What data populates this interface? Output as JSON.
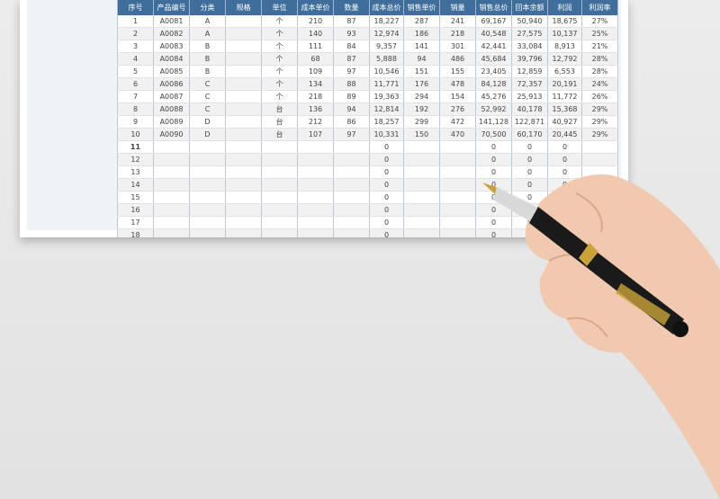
{
  "columns": [
    "序号",
    "产品编号",
    "分类",
    "规格",
    "单位",
    "成本单价",
    "数量",
    "成本总价",
    "销售单价",
    "销量",
    "销售总价",
    "回本余额",
    "利润",
    "利润率"
  ],
  "rows": [
    [
      "1",
      "A0081",
      "A",
      "",
      "个",
      "210",
      "87",
      "18,227",
      "287",
      "241",
      "69,167",
      "50,940",
      "18,675",
      "27%"
    ],
    [
      "2",
      "A0082",
      "A",
      "",
      "个",
      "140",
      "93",
      "12,974",
      "186",
      "218",
      "40,548",
      "27,575",
      "10,137",
      "25%"
    ],
    [
      "3",
      "A0083",
      "B",
      "",
      "个",
      "111",
      "84",
      "9,357",
      "141",
      "301",
      "42,441",
      "33,084",
      "8,913",
      "21%"
    ],
    [
      "4",
      "A0084",
      "B",
      "",
      "个",
      "68",
      "87",
      "5,888",
      "94",
      "486",
      "45,684",
      "39,796",
      "12,792",
      "28%"
    ],
    [
      "5",
      "A0085",
      "B",
      "",
      "个",
      "109",
      "97",
      "10,546",
      "151",
      "155",
      "23,405",
      "12,859",
      "6,553",
      "28%"
    ],
    [
      "6",
      "A0086",
      "C",
      "",
      "个",
      "134",
      "88",
      "11,771",
      "176",
      "478",
      "84,128",
      "72,357",
      "20,191",
      "24%"
    ],
    [
      "7",
      "A0087",
      "C",
      "",
      "个",
      "218",
      "89",
      "19,363",
      "294",
      "154",
      "45,276",
      "25,913",
      "11,772",
      "26%"
    ],
    [
      "8",
      "A0088",
      "C",
      "",
      "台",
      "136",
      "94",
      "12,814",
      "192",
      "276",
      "52,992",
      "40,178",
      "15,368",
      "29%"
    ],
    [
      "9",
      "A0089",
      "D",
      "",
      "台",
      "212",
      "86",
      "18,257",
      "299",
      "472",
      "141,128",
      "122,871",
      "40,927",
      "29%"
    ],
    [
      "10",
      "A0090",
      "D",
      "",
      "台",
      "107",
      "97",
      "10,331",
      "150",
      "470",
      "70,500",
      "60,170",
      "20,445",
      "29%"
    ],
    [
      "11",
      "",
      "",
      "",
      "",
      "",
      "",
      "0",
      "",
      "",
      "0",
      "0",
      "0",
      ""
    ],
    [
      "12",
      "",
      "",
      "",
      "",
      "",
      "",
      "0",
      "",
      "",
      "0",
      "0",
      "0",
      ""
    ],
    [
      "13",
      "",
      "",
      "",
      "",
      "",
      "",
      "0",
      "",
      "",
      "0",
      "0",
      "0",
      ""
    ],
    [
      "14",
      "",
      "",
      "",
      "",
      "",
      "",
      "0",
      "",
      "",
      "0",
      "0",
      "0",
      ""
    ],
    [
      "15",
      "",
      "",
      "",
      "",
      "",
      "",
      "0",
      "",
      "",
      "0",
      "0",
      "0",
      ""
    ],
    [
      "16",
      "",
      "",
      "",
      "",
      "",
      "",
      "0",
      "",
      "",
      "0",
      "0",
      "0",
      ""
    ],
    [
      "17",
      "",
      "",
      "",
      "",
      "",
      "",
      "0",
      "",
      "",
      "0",
      "0",
      "0",
      ""
    ],
    [
      "18",
      "",
      "",
      "",
      "",
      "",
      "",
      "0",
      "",
      "",
      "0",
      "0",
      "0",
      ""
    ]
  ],
  "colors": {
    "header": "#3f6e9c",
    "pen": "#1a1a1a",
    "gold": "#c9a23a",
    "skin": "#f2cfb8"
  },
  "decor": {
    "hand_icon": "hand-holding-pen"
  }
}
